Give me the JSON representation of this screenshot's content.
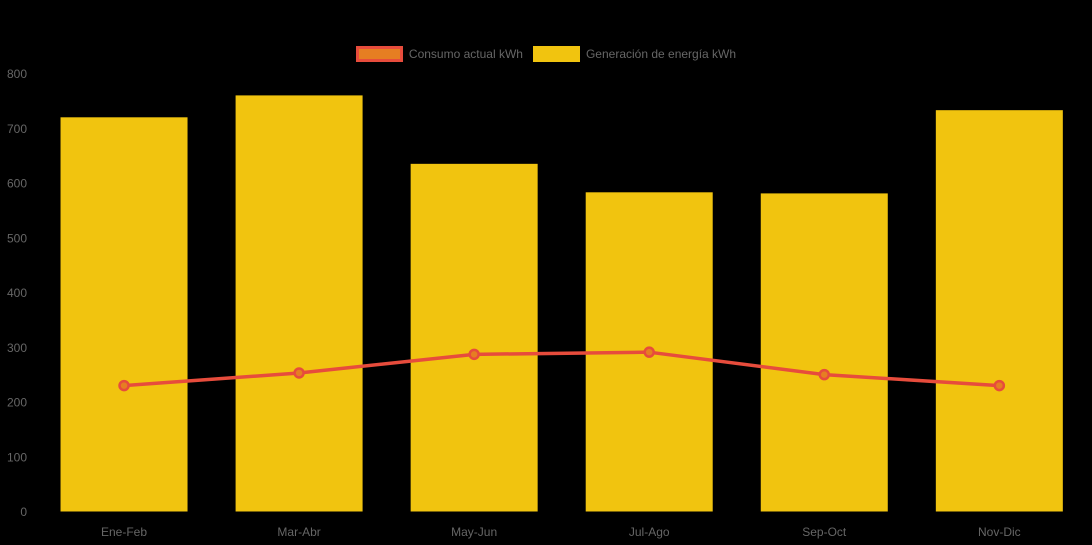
{
  "chart_data": {
    "type": "bar",
    "title": "",
    "xlabel": "",
    "ylabel": "",
    "categories": [
      "Ene-Feb",
      "Mar-Abr",
      "May-Jun",
      "Jul-Ago",
      "Sep-Oct",
      "Nov-Dic"
    ],
    "series": [
      {
        "name": "Consumo actual kWh",
        "type": "line",
        "color": "#e74c3c",
        "point_color": "#e67e22",
        "values": [
          230,
          253,
          287,
          291,
          250,
          230
        ]
      },
      {
        "name": "Generación de energía kWh",
        "type": "bar",
        "color": "#f1c40f",
        "values": [
          720,
          760,
          635,
          583,
          581,
          733
        ]
      }
    ],
    "ylim": [
      0,
      800
    ],
    "y_ticks": [
      0,
      100,
      200,
      300,
      400,
      500,
      600,
      700,
      800
    ],
    "grid": false,
    "legend_position": "top",
    "axis_text_color": "#666666",
    "background_color": "#000000"
  }
}
